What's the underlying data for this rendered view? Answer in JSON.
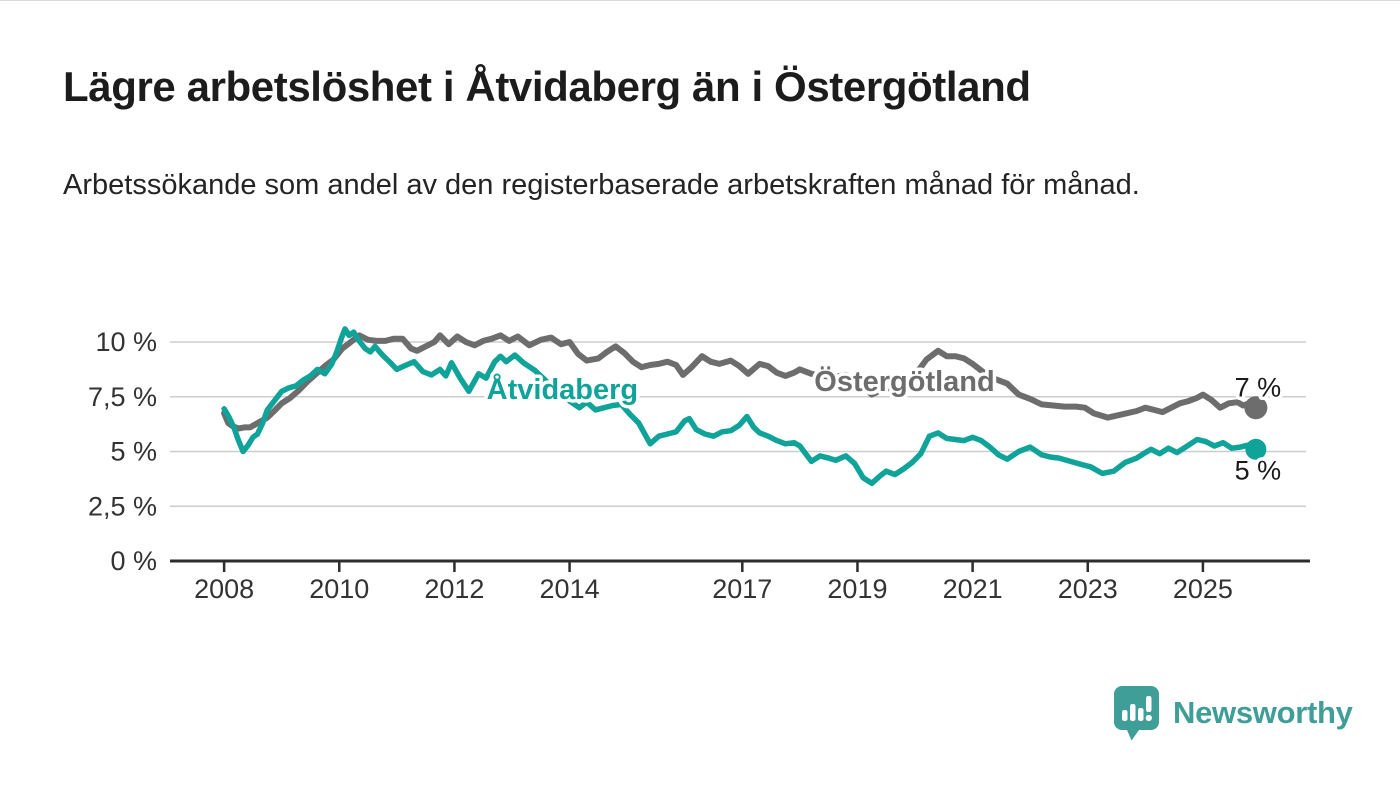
{
  "header": {
    "title": "Lägre arbetslöshet i Åtvidaberg än i Östergötland",
    "subtitle": "Arbetssökande som andel av den registerbaserade arbetskraften månad för månad."
  },
  "chart_data": {
    "type": "line",
    "unit": "%",
    "grid": true,
    "legend": "inline-labels",
    "x_axis": {
      "range": [
        2007.06,
        2026.86
      ],
      "ticks": [
        {
          "value": 2008,
          "label": "2008"
        },
        {
          "value": 2010,
          "label": "2010"
        },
        {
          "value": 2012,
          "label": "2012"
        },
        {
          "value": 2014,
          "label": "2014"
        },
        {
          "value": 2017,
          "label": "2017"
        },
        {
          "value": 2019,
          "label": "2019"
        },
        {
          "value": 2021,
          "label": "2021"
        },
        {
          "value": 2023,
          "label": "2023"
        },
        {
          "value": 2025,
          "label": "2025"
        }
      ]
    },
    "y_axis": {
      "range": [
        0,
        11.4
      ],
      "ticks": [
        {
          "value": 0,
          "label": "0 %"
        },
        {
          "value": 2.5,
          "label": "2,5 %"
        },
        {
          "value": 5,
          "label": "5 %"
        },
        {
          "value": 7.5,
          "label": "7,5 %"
        },
        {
          "value": 10,
          "label": "10 %"
        }
      ]
    },
    "series": [
      {
        "name": "Östergötland",
        "color": "#6d6d6d",
        "stroke_width": 6,
        "label_anchor": {
          "year": 2018.25,
          "value": 7.76
        },
        "end_label": {
          "text": "7 %",
          "position": "above"
        },
        "points": [
          [
            2008.0,
            6.75
          ],
          [
            2008.07,
            6.3
          ],
          [
            2008.15,
            6.15
          ],
          [
            2008.25,
            6.05
          ],
          [
            2008.35,
            6.1
          ],
          [
            2008.45,
            6.1
          ],
          [
            2008.55,
            6.25
          ],
          [
            2008.65,
            6.4
          ],
          [
            2008.75,
            6.55
          ],
          [
            2008.87,
            6.85
          ],
          [
            2009.0,
            7.2
          ],
          [
            2009.15,
            7.45
          ],
          [
            2009.3,
            7.8
          ],
          [
            2009.45,
            8.2
          ],
          [
            2009.6,
            8.55
          ],
          [
            2009.75,
            8.9
          ],
          [
            2009.9,
            9.2
          ],
          [
            2010.05,
            9.7
          ],
          [
            2010.2,
            10.0
          ],
          [
            2010.35,
            10.3
          ],
          [
            2010.5,
            10.1
          ],
          [
            2010.65,
            10.05
          ],
          [
            2010.8,
            10.05
          ],
          [
            2010.95,
            10.15
          ],
          [
            2011.1,
            10.15
          ],
          [
            2011.25,
            9.7
          ],
          [
            2011.35,
            9.6
          ],
          [
            2011.5,
            9.8
          ],
          [
            2011.65,
            10.0
          ],
          [
            2011.75,
            10.3
          ],
          [
            2011.9,
            9.9
          ],
          [
            2012.05,
            10.25
          ],
          [
            2012.2,
            10.0
          ],
          [
            2012.35,
            9.85
          ],
          [
            2012.5,
            10.05
          ],
          [
            2012.65,
            10.15
          ],
          [
            2012.8,
            10.3
          ],
          [
            2012.95,
            10.05
          ],
          [
            2013.1,
            10.25
          ],
          [
            2013.3,
            9.85
          ],
          [
            2013.5,
            10.1
          ],
          [
            2013.68,
            10.2
          ],
          [
            2013.85,
            9.9
          ],
          [
            2014.0,
            10.0
          ],
          [
            2014.15,
            9.45
          ],
          [
            2014.3,
            9.15
          ],
          [
            2014.5,
            9.25
          ],
          [
            2014.65,
            9.55
          ],
          [
            2014.8,
            9.8
          ],
          [
            2014.95,
            9.5
          ],
          [
            2015.1,
            9.1
          ],
          [
            2015.25,
            8.85
          ],
          [
            2015.4,
            8.95
          ],
          [
            2015.55,
            9.0
          ],
          [
            2015.7,
            9.1
          ],
          [
            2015.85,
            8.95
          ],
          [
            2015.97,
            8.5
          ],
          [
            2016.1,
            8.8
          ],
          [
            2016.3,
            9.35
          ],
          [
            2016.45,
            9.1
          ],
          [
            2016.6,
            9.0
          ],
          [
            2016.8,
            9.15
          ],
          [
            2016.95,
            8.9
          ],
          [
            2017.1,
            8.55
          ],
          [
            2017.3,
            9.0
          ],
          [
            2017.45,
            8.9
          ],
          [
            2017.6,
            8.6
          ],
          [
            2017.75,
            8.45
          ],
          [
            2017.9,
            8.6
          ],
          [
            2018.0,
            8.75
          ],
          [
            2018.2,
            8.55
          ],
          [
            2018.4,
            8.45
          ],
          [
            2018.6,
            8.4
          ],
          [
            2018.8,
            8.5
          ],
          [
            2019.0,
            8.25
          ],
          [
            2019.25,
            7.6
          ],
          [
            2019.45,
            7.85
          ],
          [
            2019.6,
            7.9
          ],
          [
            2019.8,
            8.1
          ],
          [
            2020.0,
            8.5
          ],
          [
            2020.2,
            9.2
          ],
          [
            2020.4,
            9.6
          ],
          [
            2020.55,
            9.35
          ],
          [
            2020.7,
            9.35
          ],
          [
            2020.85,
            9.25
          ],
          [
            2021.0,
            9.0
          ],
          [
            2021.2,
            8.6
          ],
          [
            2021.4,
            8.3
          ],
          [
            2021.6,
            8.1
          ],
          [
            2021.8,
            7.6
          ],
          [
            2022.0,
            7.4
          ],
          [
            2022.2,
            7.15
          ],
          [
            2022.4,
            7.1
          ],
          [
            2022.6,
            7.05
          ],
          [
            2022.8,
            7.05
          ],
          [
            2022.95,
            7.0
          ],
          [
            2023.1,
            6.75
          ],
          [
            2023.35,
            6.55
          ],
          [
            2023.6,
            6.7
          ],
          [
            2023.85,
            6.85
          ],
          [
            2024.0,
            7.0
          ],
          [
            2024.15,
            6.9
          ],
          [
            2024.3,
            6.8
          ],
          [
            2024.45,
            7.0
          ],
          [
            2024.6,
            7.2
          ],
          [
            2024.75,
            7.3
          ],
          [
            2024.9,
            7.45
          ],
          [
            2025.0,
            7.6
          ],
          [
            2025.15,
            7.35
          ],
          [
            2025.3,
            7.0
          ],
          [
            2025.45,
            7.2
          ],
          [
            2025.6,
            7.25
          ],
          [
            2025.7,
            7.1
          ],
          [
            2025.8,
            7.2
          ],
          [
            2025.92,
            7.0
          ]
        ]
      },
      {
        "name": "Åtvidaberg",
        "color": "#10a39a",
        "stroke_width": 5.5,
        "label_anchor": {
          "year": 2012.56,
          "value": 7.4
        },
        "end_label": {
          "text": "5 %",
          "position": "below"
        },
        "points": [
          [
            2008.0,
            6.95
          ],
          [
            2008.08,
            6.6
          ],
          [
            2008.17,
            6.1
          ],
          [
            2008.25,
            5.5
          ],
          [
            2008.33,
            5.0
          ],
          [
            2008.42,
            5.3
          ],
          [
            2008.5,
            5.65
          ],
          [
            2008.58,
            5.8
          ],
          [
            2008.67,
            6.3
          ],
          [
            2008.75,
            6.9
          ],
          [
            2008.87,
            7.3
          ],
          [
            2009.0,
            7.75
          ],
          [
            2009.12,
            7.9
          ],
          [
            2009.25,
            8.0
          ],
          [
            2009.37,
            8.25
          ],
          [
            2009.5,
            8.45
          ],
          [
            2009.62,
            8.75
          ],
          [
            2009.75,
            8.55
          ],
          [
            2009.87,
            9.0
          ],
          [
            2009.95,
            9.5
          ],
          [
            2010.04,
            10.2
          ],
          [
            2010.1,
            10.6
          ],
          [
            2010.17,
            10.3
          ],
          [
            2010.25,
            10.45
          ],
          [
            2010.33,
            10.1
          ],
          [
            2010.45,
            9.7
          ],
          [
            2010.54,
            9.55
          ],
          [
            2010.62,
            9.8
          ],
          [
            2010.75,
            9.4
          ],
          [
            2010.87,
            9.1
          ],
          [
            2011.0,
            8.75
          ],
          [
            2011.12,
            8.9
          ],
          [
            2011.3,
            9.1
          ],
          [
            2011.45,
            8.65
          ],
          [
            2011.6,
            8.5
          ],
          [
            2011.75,
            8.75
          ],
          [
            2011.85,
            8.45
          ],
          [
            2011.95,
            9.05
          ],
          [
            2012.1,
            8.35
          ],
          [
            2012.25,
            7.75
          ],
          [
            2012.42,
            8.55
          ],
          [
            2012.55,
            8.35
          ],
          [
            2012.7,
            9.1
          ],
          [
            2012.8,
            9.35
          ],
          [
            2012.9,
            9.1
          ],
          [
            2013.05,
            9.4
          ],
          [
            2013.2,
            9.05
          ],
          [
            2013.4,
            8.7
          ],
          [
            2013.6,
            8.2
          ],
          [
            2013.8,
            7.6
          ],
          [
            2014.0,
            7.3
          ],
          [
            2014.17,
            7.0
          ],
          [
            2014.3,
            7.25
          ],
          [
            2014.45,
            6.9
          ],
          [
            2014.6,
            7.0
          ],
          [
            2014.75,
            7.1
          ],
          [
            2014.9,
            7.15
          ],
          [
            2015.05,
            6.7
          ],
          [
            2015.2,
            6.3
          ],
          [
            2015.4,
            5.35
          ],
          [
            2015.55,
            5.7
          ],
          [
            2015.7,
            5.8
          ],
          [
            2015.85,
            5.9
          ],
          [
            2016.0,
            6.4
          ],
          [
            2016.08,
            6.5
          ],
          [
            2016.2,
            6.0
          ],
          [
            2016.35,
            5.8
          ],
          [
            2016.5,
            5.7
          ],
          [
            2016.65,
            5.9
          ],
          [
            2016.8,
            5.95
          ],
          [
            2016.95,
            6.2
          ],
          [
            2017.08,
            6.6
          ],
          [
            2017.2,
            6.1
          ],
          [
            2017.3,
            5.85
          ],
          [
            2017.45,
            5.7
          ],
          [
            2017.6,
            5.5
          ],
          [
            2017.75,
            5.35
          ],
          [
            2017.9,
            5.4
          ],
          [
            2018.0,
            5.25
          ],
          [
            2018.2,
            4.55
          ],
          [
            2018.35,
            4.8
          ],
          [
            2018.5,
            4.7
          ],
          [
            2018.62,
            4.6
          ],
          [
            2018.8,
            4.8
          ],
          [
            2018.95,
            4.45
          ],
          [
            2019.1,
            3.8
          ],
          [
            2019.25,
            3.55
          ],
          [
            2019.4,
            3.9
          ],
          [
            2019.5,
            4.1
          ],
          [
            2019.65,
            3.95
          ],
          [
            2019.8,
            4.2
          ],
          [
            2019.95,
            4.5
          ],
          [
            2020.1,
            4.9
          ],
          [
            2020.25,
            5.7
          ],
          [
            2020.4,
            5.85
          ],
          [
            2020.55,
            5.6
          ],
          [
            2020.7,
            5.55
          ],
          [
            2020.85,
            5.5
          ],
          [
            2021.0,
            5.65
          ],
          [
            2021.15,
            5.5
          ],
          [
            2021.3,
            5.2
          ],
          [
            2021.45,
            4.85
          ],
          [
            2021.6,
            4.65
          ],
          [
            2021.8,
            5.0
          ],
          [
            2022.0,
            5.2
          ],
          [
            2022.2,
            4.85
          ],
          [
            2022.35,
            4.75
          ],
          [
            2022.5,
            4.7
          ],
          [
            2022.7,
            4.55
          ],
          [
            2022.9,
            4.4
          ],
          [
            2023.05,
            4.3
          ],
          [
            2023.25,
            4.0
          ],
          [
            2023.45,
            4.1
          ],
          [
            2023.65,
            4.5
          ],
          [
            2023.85,
            4.7
          ],
          [
            2024.0,
            4.95
          ],
          [
            2024.1,
            5.1
          ],
          [
            2024.25,
            4.9
          ],
          [
            2024.4,
            5.15
          ],
          [
            2024.55,
            4.95
          ],
          [
            2024.7,
            5.2
          ],
          [
            2024.9,
            5.55
          ],
          [
            2025.05,
            5.45
          ],
          [
            2025.2,
            5.25
          ],
          [
            2025.35,
            5.4
          ],
          [
            2025.5,
            5.15
          ],
          [
            2025.65,
            5.2
          ],
          [
            2025.8,
            5.3
          ],
          [
            2025.92,
            5.1
          ]
        ]
      }
    ]
  },
  "logo": {
    "text": "Newsworthy",
    "color": "#3f9e97",
    "icon": "bar-chart-pin-icon"
  }
}
